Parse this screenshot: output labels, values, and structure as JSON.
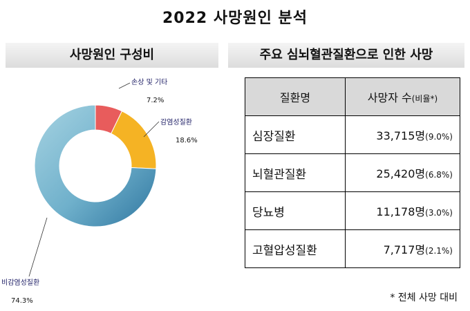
{
  "title": "2022 사망원인 분석",
  "left_header": "사망원인 구성비",
  "right_header": "주요 심뇌혈관질환으로 인한 사망",
  "chart_data": {
    "type": "pie",
    "variant": "donut",
    "slices": [
      {
        "label": "손상 및 기타",
        "value_label": "7.2%",
        "value": 7.2,
        "color": "#e85c5c"
      },
      {
        "label": "감염성질환",
        "value_label": "18.6%",
        "value": 18.6,
        "color": "#f5b324"
      },
      {
        "label": "비감염성질환",
        "value_label": "74.3%",
        "value": 74.3,
        "color": "#4f9ab8"
      }
    ]
  },
  "table": {
    "header_name": "질환명",
    "header_deaths": "사망자 수",
    "header_ratio": "(비율*)",
    "rows": [
      {
        "name": "심장질환",
        "deaths": "33,715명",
        "ratio": "(9.0%)"
      },
      {
        "name": "뇌혈관질환",
        "deaths": "25,420명",
        "ratio": "(6.8%)"
      },
      {
        "name": "당뇨병",
        "deaths": "11,178명",
        "ratio": "(3.0%)"
      },
      {
        "name": "고혈압성질환",
        "deaths": "7,717명",
        "ratio": "(2.1%)"
      }
    ]
  },
  "note": "* 전체 사망 대비"
}
